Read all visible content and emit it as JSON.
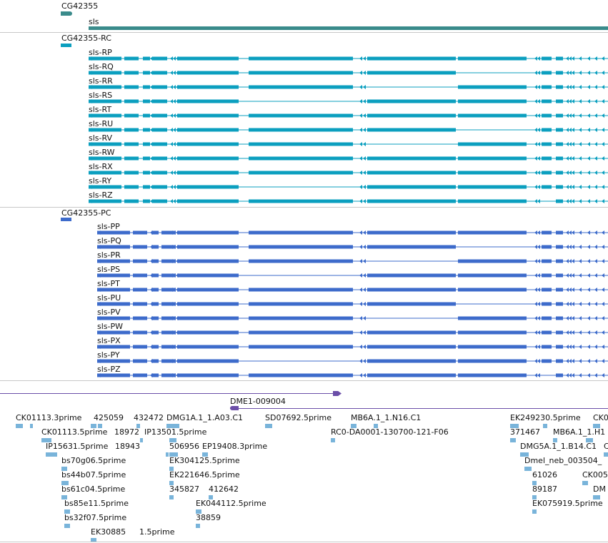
{
  "colors": {
    "gene": "#3a8b8b",
    "rc": "#0b9fbf",
    "pc": "#3d6bcb",
    "contig": "#6b4ea8",
    "est": "#79b4da",
    "separator": "#c8c8c8"
  },
  "gene_track": {
    "group_label": "CG42355",
    "gene_label": "sls"
  },
  "rc_track": {
    "group_label": "CG42355-RC",
    "transcripts": [
      "sls-RP",
      "sls-RQ",
      "sls-RR",
      "sls-RS",
      "sls-RT",
      "sls-RU",
      "sls-RV",
      "sls-RW",
      "sls-RX",
      "sls-RY",
      "sls-RZ"
    ]
  },
  "pc_track": {
    "group_label": "CG42355-PC",
    "transcripts": [
      "sls-PP",
      "sls-PQ",
      "sls-PR",
      "sls-PS",
      "sls-PT",
      "sls-PU",
      "sls-PV",
      "sls-PW",
      "sls-PX",
      "sls-PY",
      "sls-PZ"
    ]
  },
  "contig_track": {
    "label": "DME1-009004"
  },
  "est_track": {
    "labels": [
      "CK01113.3prime",
      "425059",
      "432472",
      "DMG1A.1_1.A03.C1",
      "SD07692.5prime",
      "MB6A.1_1.N16.C1",
      "EK249230.5prime",
      "CK0",
      "CK01113.5prime",
      "18972",
      "IP13501.5prime",
      "RC0-DA0001-130700-121-F06",
      "371467",
      "MB6A.1_1.H1",
      "IP15631.5prime",
      "18943",
      "506956",
      "EP19408.3prime",
      "DMG5A.1_1.B14.C1",
      "C",
      "bs70g06.5prime",
      "EK304125.5prime",
      "Dmel_neb_003504_",
      "bs44b07.5prime",
      "EK221646.5prime",
      "61026",
      "CK005",
      "bs61c04.5prime",
      "345827",
      "412642",
      "89187",
      "DM",
      "bs85e11.5prime",
      "EK044112.5prime",
      "EK075919.5prime",
      "bs32f07.5prime",
      "38859",
      "EK30885",
      "1.5prime"
    ]
  }
}
